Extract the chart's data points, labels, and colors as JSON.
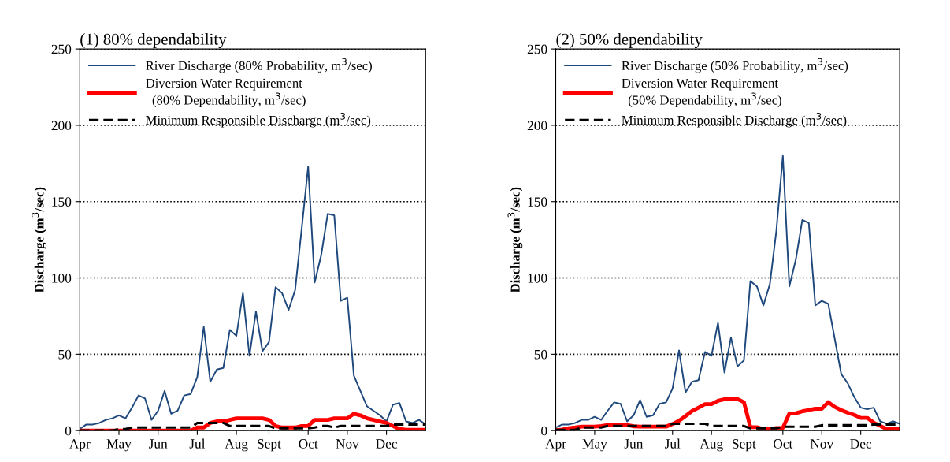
{
  "chart_data": [
    {
      "type": "line",
      "title": "(1) 80% dependability",
      "ylabel": "Discharge (m$^{3}$/sec)",
      "categories": [
        "Apr",
        null,
        null,
        null,
        null,
        null,
        "May",
        null,
        null,
        null,
        null,
        null,
        "Jun",
        null,
        null,
        null,
        null,
        null,
        "Jul",
        null,
        null,
        null,
        null,
        null,
        "Aug",
        null,
        null,
        null,
        null,
        "Sept",
        null,
        null,
        null,
        null,
        null,
        "Oct",
        null,
        null,
        null,
        null,
        null,
        "Nov",
        null,
        null,
        null,
        null,
        null,
        "Dec",
        null,
        null,
        null,
        null,
        null,
        null
      ],
      "ylim": [
        0,
        250
      ],
      "yticks": [
        0,
        50,
        100,
        150,
        200,
        250
      ],
      "grid": "y",
      "legend": "top left",
      "series": [
        {
          "name": "River Discharge (80% Probability, m$^{3}$/sec)",
          "color": "#1f497d",
          "line_style": "solid",
          "values": [
            1,
            4,
            4,
            5,
            7,
            8,
            10,
            8,
            15,
            23,
            21,
            7,
            13,
            26,
            11,
            13,
            23,
            24,
            35,
            68,
            32,
            40,
            41,
            66,
            62,
            90,
            49,
            78,
            52,
            58,
            94,
            90,
            79,
            92,
            132,
            173,
            97,
            115,
            142,
            141,
            85,
            87,
            36,
            26,
            16,
            13,
            10,
            6,
            17,
            18,
            6,
            5,
            7,
            4
          ]
        },
        {
          "name": "Diversion Water Requirement\n  (80% Dependability, m$^{3}$/sec)",
          "color": "#ff0000",
          "line_style": "solid",
          "values": [
            0,
            0,
            0,
            0,
            0,
            0,
            0,
            0,
            0,
            0,
            0,
            0,
            0,
            0,
            0,
            0,
            0,
            0,
            2,
            2,
            5,
            6,
            6,
            7,
            8,
            8,
            8,
            8,
            8,
            7,
            3,
            2,
            2,
            2,
            3,
            3,
            7,
            7,
            7,
            8,
            8,
            8,
            11,
            10,
            8,
            7,
            6,
            5,
            3,
            1,
            0.5,
            0.5,
            0.5,
            0.5
          ]
        },
        {
          "name": "Minimum Responsible Discharge (m$^{3}$/sec)",
          "color": "#000000",
          "line_style": "dashed",
          "values": [
            0,
            0,
            0,
            0,
            0,
            0,
            1,
            1,
            2,
            2,
            2,
            2,
            2,
            2,
            2,
            2,
            2,
            2,
            5,
            5,
            5,
            5,
            5,
            3,
            3,
            3,
            3,
            3,
            3,
            3,
            1.5,
            1.5,
            1.5,
            1.5,
            1.5,
            1.5,
            2,
            3,
            3,
            2,
            3,
            3,
            3,
            3,
            3,
            3,
            3,
            3,
            4,
            4,
            4,
            4,
            4,
            4
          ]
        }
      ]
    },
    {
      "type": "line",
      "title": "(2) 50% dependability",
      "ylabel": "Discharge (m$^{3}$/sec)",
      "categories": [
        "Apr",
        null,
        null,
        null,
        null,
        null,
        "May",
        null,
        null,
        null,
        null,
        null,
        "Jun",
        null,
        null,
        null,
        null,
        null,
        "Jul",
        null,
        null,
        null,
        null,
        null,
        "Aug",
        null,
        null,
        null,
        null,
        "Sept",
        null,
        null,
        null,
        null,
        null,
        "Oct",
        null,
        null,
        null,
        null,
        null,
        "Nov",
        null,
        null,
        null,
        null,
        null,
        "Dec",
        null,
        null,
        null,
        null,
        null,
        null
      ],
      "ylim": [
        0,
        250
      ],
      "yticks": [
        0,
        50,
        100,
        150,
        200,
        250
      ],
      "grid": "y",
      "legend": "top left",
      "series": [
        {
          "name": "River Discharge (50% Probability, m$^{3}$/sec)",
          "color": "#1f497d",
          "line_style": "solid",
          "values": [
            2,
            4,
            4,
            5,
            7,
            7,
            9,
            7,
            13,
            18.5,
            17.5,
            6,
            10,
            20,
            9,
            10,
            17.5,
            18.5,
            27.5,
            52.5,
            25,
            32,
            33,
            51.5,
            49,
            70.5,
            38,
            61,
            42,
            46,
            98,
            94.5,
            82,
            96,
            131,
            180,
            94.5,
            112,
            138,
            136,
            82,
            85,
            83,
            60,
            37,
            31,
            22,
            15,
            14,
            15,
            6,
            4.5,
            6,
            4.5
          ]
        },
        {
          "name": "Diversion Water Requirement\n  (50% Dependability, m$^{3}$/sec)",
          "color": "#ff0000",
          "line_style": "solid",
          "values": [
            0.3,
            0.7,
            1.5,
            2,
            2.6,
            2.6,
            2.6,
            3,
            3.6,
            3.6,
            3.6,
            3.6,
            2.8,
            2.6,
            2.6,
            2.6,
            2.6,
            2.6,
            4.3,
            6.4,
            9.5,
            12.8,
            15,
            17.3,
            17.3,
            19.5,
            20.5,
            20.7,
            20.7,
            18.6,
            2.2,
            2.2,
            1,
            1,
            1.7,
            1.7,
            11.2,
            11.4,
            12.6,
            13.4,
            14.3,
            14.3,
            18.6,
            15.5,
            13.4,
            11.7,
            10.3,
            8.3,
            8.3,
            5.2,
            3.1,
            1,
            1,
            1
          ]
        },
        {
          "name": "Minimum Responsible Discharge (m$^{3}$/sec)",
          "color": "#000000",
          "line_style": "dashed",
          "values": [
            0.5,
            0.5,
            0.5,
            0.5,
            2,
            2,
            2,
            2,
            3,
            3,
            3,
            3,
            3,
            3,
            3,
            3,
            3,
            3,
            4.5,
            4.5,
            4.5,
            4.5,
            4.5,
            4.5,
            3,
            3,
            3,
            3,
            3,
            3,
            1.5,
            1.5,
            1.5,
            1.5,
            1.5,
            2.5,
            2.5,
            2.5,
            2.5,
            2.5,
            2.5,
            3.5,
            3.5,
            3.5,
            3.5,
            3.5,
            3.5,
            3.5,
            3.5,
            4,
            4,
            4,
            4,
            4
          ]
        }
      ]
    }
  ]
}
